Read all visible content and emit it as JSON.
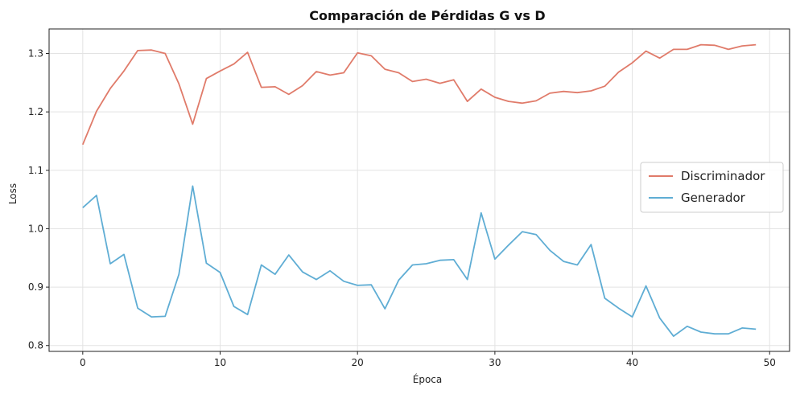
{
  "chart_data": {
    "type": "line",
    "title": "Comparación de Pérdidas G vs D",
    "xlabel": "Época",
    "ylabel": "Loss",
    "xlim": [
      -2.45,
      51.45
    ],
    "ylim": [
      0.79,
      1.342
    ],
    "xticks": [
      0,
      10,
      20,
      30,
      40,
      50
    ],
    "yticks": [
      0.8,
      0.9,
      1.0,
      1.1,
      1.2,
      1.3
    ],
    "grid": true,
    "legend_position": "center-right",
    "x": [
      0,
      1,
      2,
      3,
      4,
      5,
      6,
      7,
      8,
      9,
      10,
      11,
      12,
      13,
      14,
      15,
      16,
      17,
      18,
      19,
      20,
      21,
      22,
      23,
      24,
      25,
      26,
      27,
      28,
      29,
      30,
      31,
      32,
      33,
      34,
      35,
      36,
      37,
      38,
      39,
      40,
      41,
      42,
      43,
      44,
      45,
      46,
      47,
      48,
      49
    ],
    "series": [
      {
        "name": "Discriminador",
        "color": "#e07b6a",
        "values": [
          1.144,
          1.201,
          1.24,
          1.27,
          1.305,
          1.306,
          1.3,
          1.248,
          1.179,
          1.257,
          1.27,
          1.282,
          1.302,
          1.242,
          1.243,
          1.23,
          1.245,
          1.269,
          1.263,
          1.267,
          1.301,
          1.296,
          1.273,
          1.267,
          1.252,
          1.256,
          1.249,
          1.255,
          1.218,
          1.239,
          1.225,
          1.218,
          1.215,
          1.219,
          1.232,
          1.235,
          1.233,
          1.236,
          1.244,
          1.268,
          1.284,
          1.304,
          1.292,
          1.307,
          1.307,
          1.315,
          1.314,
          1.307,
          1.313,
          1.315
        ]
      },
      {
        "name": "Generador",
        "color": "#5fadd4",
        "values": [
          1.036,
          1.057,
          0.94,
          0.956,
          0.864,
          0.849,
          0.85,
          0.922,
          1.073,
          0.941,
          0.925,
          0.867,
          0.853,
          0.938,
          0.922,
          0.955,
          0.926,
          0.913,
          0.928,
          0.91,
          0.903,
          0.904,
          0.863,
          0.912,
          0.938,
          0.94,
          0.946,
          0.947,
          0.913,
          1.027,
          0.948,
          0.972,
          0.995,
          0.99,
          0.963,
          0.944,
          0.938,
          0.973,
          0.881,
          0.864,
          0.849,
          0.902,
          0.847,
          0.816,
          0.833,
          0.823,
          0.82,
          0.82,
          0.83,
          0.828
        ]
      }
    ]
  }
}
